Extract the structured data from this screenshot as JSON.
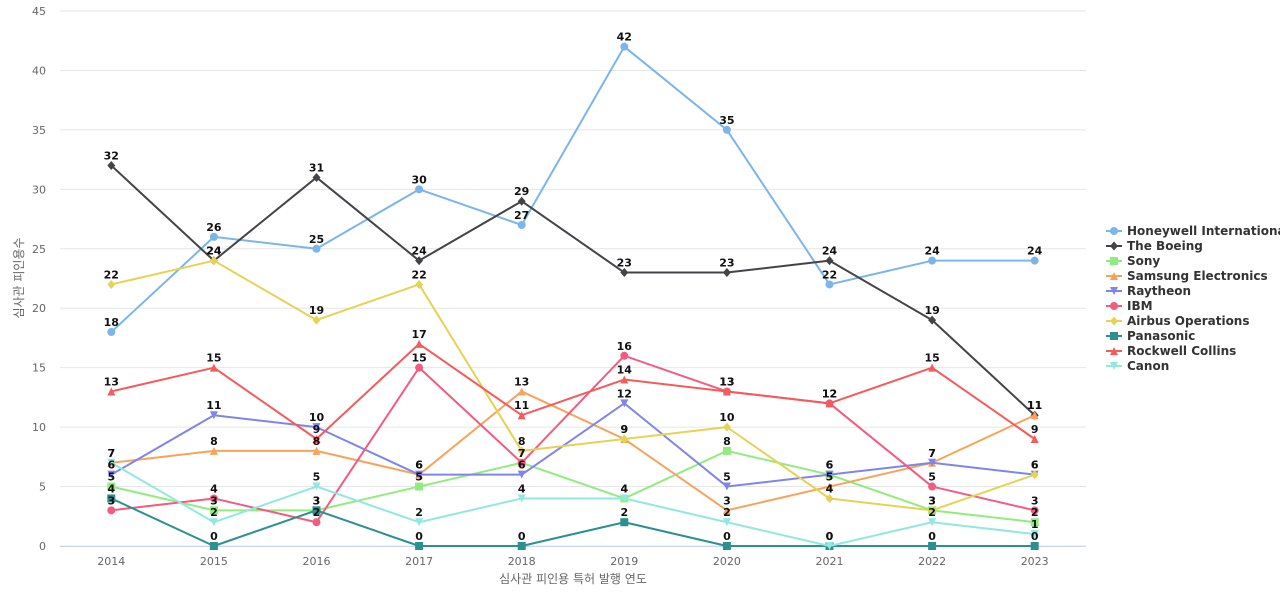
{
  "chart_data": {
    "type": "line",
    "xlabel": "심사관 피인용 특허 발행 연도",
    "ylabel": "심사관 피인용수",
    "x": [
      "2014",
      "2015",
      "2016",
      "2017",
      "2018",
      "2019",
      "2020",
      "2021",
      "2022",
      "2023"
    ],
    "ylim": [
      0,
      45
    ],
    "yticks": [
      0,
      5,
      10,
      15,
      20,
      25,
      30,
      35,
      40,
      45
    ],
    "grid": true,
    "legend_position": "right",
    "series": [
      {
        "name": "Honeywell International",
        "color": "#7cb5ec",
        "marker": "circle",
        "values": [
          18,
          26,
          25,
          30,
          27,
          42,
          35,
          22,
          24,
          24
        ]
      },
      {
        "name": "The Boeing",
        "color": "#434348",
        "marker": "diamond",
        "values": [
          32,
          24,
          31,
          24,
          29,
          23,
          23,
          24,
          19,
          11
        ]
      },
      {
        "name": "Sony",
        "color": "#90ed7d",
        "marker": "square",
        "values": [
          5,
          3,
          3,
          5,
          7,
          4,
          8,
          6,
          3,
          2
        ]
      },
      {
        "name": "Samsung Electronics",
        "color": "#f7a35c",
        "marker": "triangle",
        "values": [
          7,
          8,
          8,
          6,
          13,
          9,
          3,
          5,
          7,
          11
        ]
      },
      {
        "name": "Raytheon",
        "color": "#8085e9",
        "marker": "triangle-down",
        "values": [
          6,
          11,
          10,
          6,
          6,
          12,
          5,
          6,
          7,
          6
        ]
      },
      {
        "name": "IBM",
        "color": "#f15c80",
        "marker": "circle",
        "values": [
          3,
          4,
          2,
          15,
          7,
          16,
          13,
          12,
          5,
          3
        ]
      },
      {
        "name": "Airbus Operations",
        "color": "#e4d354",
        "marker": "diamond",
        "values": [
          22,
          24,
          19,
          22,
          8,
          9,
          10,
          4,
          3,
          6
        ]
      },
      {
        "name": "Panasonic",
        "color": "#2b908f",
        "marker": "square",
        "values": [
          4,
          0,
          3,
          0,
          0,
          2,
          0,
          0,
          0,
          0
        ]
      },
      {
        "name": "Rockwell Collins",
        "color": "#f45b5b",
        "marker": "triangle",
        "values": [
          13,
          15,
          9,
          17,
          11,
          14,
          13,
          12,
          15,
          9
        ]
      },
      {
        "name": "Canon",
        "color": "#91e8e1",
        "marker": "triangle-down",
        "values": [
          7,
          2,
          5,
          2,
          4,
          4,
          2,
          0,
          2,
          1
        ]
      }
    ]
  }
}
